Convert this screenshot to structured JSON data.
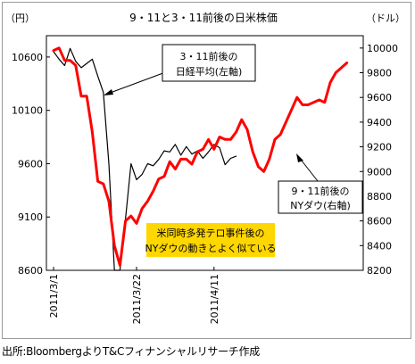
{
  "chart_data": {
    "type": "line",
    "title": "9・11と3・11前後の日米株価",
    "left_unit": "（円）",
    "right_unit": "（ドル）",
    "left_axis": {
      "ylim": [
        8600,
        10800
      ],
      "ticks": [
        8600,
        9100,
        9600,
        10100,
        10600
      ]
    },
    "right_axis": {
      "ylim": [
        8200,
        10100
      ],
      "ticks": [
        8200,
        8400,
        8600,
        8800,
        9000,
        9200,
        9400,
        9600,
        9800,
        10000
      ]
    },
    "x_tick_labels": [
      "2011/3/1",
      "2011/3/22",
      "2011/4/11"
    ],
    "x_tick_index": [
      0,
      15,
      29
    ],
    "series": [
      {
        "name": "3・11前後の日経平均(左軸)",
        "axis": "left",
        "color": "#000000",
        "values": [
          10650,
          10580,
          10520,
          10680,
          10560,
          10500,
          10540,
          10580,
          10420,
          10270,
          9600,
          8600,
          8600,
          9080,
          9600,
          9450,
          9500,
          9600,
          9580,
          9640,
          9720,
          9710,
          9780,
          9680,
          9760,
          9690,
          9720,
          9650,
          9710,
          9780,
          9750,
          9590,
          9650,
          9670
        ]
      },
      {
        "name": "9・11前後のNYダウ(右軸)",
        "axis": "right",
        "color": "#ff0000",
        "values": [
          9980,
          10000,
          9900,
          9900,
          9860,
          9610,
          9610,
          9320,
          8920,
          8900,
          8760,
          8400,
          8240,
          8600,
          8640,
          8580,
          8700,
          8760,
          8840,
          8940,
          8960,
          9080,
          9020,
          9100,
          9100,
          9060,
          9160,
          9180,
          9260,
          9180,
          9280,
          9260,
          9260,
          9320,
          9420,
          9340,
          9160,
          9040,
          9000,
          9100,
          9260,
          9300,
          9400,
          9500,
          9600,
          9540,
          9540,
          9560,
          9580,
          9560,
          9720,
          9800,
          9840,
          9880
        ]
      }
    ],
    "annotations": [
      {
        "lines": [
          "3・11前後の",
          "日経平均(左軸)"
        ]
      },
      {
        "lines": [
          "9・11前後の",
          "NYダウ(右軸)"
        ]
      },
      {
        "lines": [
          "米同時多発テロ事件後の",
          "NYダウの動きとよく似ている"
        ],
        "background": "#ffd700"
      }
    ],
    "grid": false
  },
  "source_note": "出所:BloombergよりT&Cフィナンシャルリサーチ作成"
}
